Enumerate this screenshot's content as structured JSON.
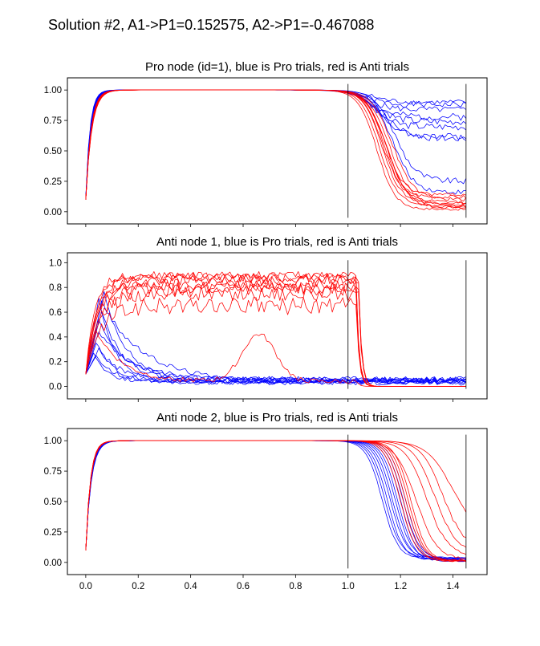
{
  "figure": {
    "suptitle": "Solution #2,  A1->P1=0.152575,  A2->P1=-0.467088"
  },
  "colors": {
    "pro": "#0000ff",
    "anti": "#ff0000",
    "marker": "#000000"
  },
  "chart_data": [
    {
      "type": "line",
      "title": "Pro node (id=1), blue is Pro trials, red is Anti trials",
      "xlabel": "",
      "ylabel": "",
      "xlim": [
        -0.07,
        1.53
      ],
      "ylim": [
        -0.1,
        1.1
      ],
      "x_ticks": [
        0.0,
        0.2,
        0.4,
        0.6,
        0.8,
        1.0,
        1.2,
        1.4
      ],
      "y_ticks": [
        0.0,
        0.25,
        0.5,
        0.75,
        1.0
      ],
      "y_tick_labels": [
        "0.00",
        "0.25",
        "0.50",
        "0.75",
        "1.00"
      ],
      "show_x_tick_labels": false,
      "vlines": [
        {
          "x": 1.0,
          "y0": -0.05,
          "y1": 1.05
        },
        {
          "x": 1.45,
          "y0": -0.05,
          "y1": 1.05
        }
      ],
      "series": [
        {
          "group": "pro",
          "kind": "sat",
          "y0": 0.1,
          "r": 55,
          "dec_t": 1.07,
          "dec_w": 0.04,
          "final": 0.88,
          "noise": 0.05,
          "seed": 1
        },
        {
          "group": "pro",
          "kind": "sat",
          "y0": 0.12,
          "r": 60,
          "dec_t": 1.09,
          "dec_w": 0.04,
          "final": 0.78,
          "noise": 0.06,
          "seed": 2
        },
        {
          "group": "pro",
          "kind": "sat",
          "y0": 0.1,
          "r": 50,
          "dec_t": 1.1,
          "dec_w": 0.04,
          "final": 0.7,
          "noise": 0.06,
          "seed": 3
        },
        {
          "group": "pro",
          "kind": "sat",
          "y0": 0.11,
          "r": 58,
          "dec_t": 1.12,
          "dec_w": 0.04,
          "final": 0.62,
          "noise": 0.05,
          "seed": 4
        },
        {
          "group": "pro",
          "kind": "sat",
          "y0": 0.1,
          "r": 52,
          "dec_t": 1.08,
          "dec_w": 0.04,
          "final": 0.84,
          "noise": 0.05,
          "seed": 5
        },
        {
          "group": "pro",
          "kind": "sat",
          "y0": 0.1,
          "r": 56,
          "dec_t": 1.11,
          "dec_w": 0.04,
          "final": 0.74,
          "noise": 0.06,
          "seed": 6
        },
        {
          "group": "pro",
          "kind": "sat",
          "y0": 0.12,
          "r": 62,
          "dec_t": 1.13,
          "dec_w": 0.05,
          "final": 0.6,
          "noise": 0.06,
          "seed": 7
        },
        {
          "group": "pro",
          "kind": "sat",
          "y0": 0.1,
          "r": 54,
          "dec_t": 1.09,
          "dec_w": 0.04,
          "final": 0.9,
          "noise": 0.04,
          "seed": 8
        },
        {
          "group": "pro",
          "kind": "sat",
          "y0": 0.11,
          "r": 57,
          "dec_t": 1.18,
          "dec_w": 0.04,
          "final": 0.25,
          "noise": 0.05,
          "seed": 9
        },
        {
          "group": "pro",
          "kind": "sat",
          "y0": 0.1,
          "r": 53,
          "dec_t": 1.17,
          "dec_w": 0.04,
          "final": 0.16,
          "noise": 0.04,
          "seed": 10
        },
        {
          "group": "anti",
          "kind": "sat",
          "y0": 0.1,
          "r": 45,
          "dec_t": 1.12,
          "dec_w": 0.035,
          "final": 0.05,
          "noise": 0.02,
          "seed": 11
        },
        {
          "group": "anti",
          "kind": "sat",
          "y0": 0.1,
          "r": 48,
          "dec_t": 1.14,
          "dec_w": 0.035,
          "final": 0.08,
          "noise": 0.03,
          "seed": 12
        },
        {
          "group": "anti",
          "kind": "sat",
          "y0": 0.1,
          "r": 50,
          "dec_t": 1.15,
          "dec_w": 0.04,
          "final": 0.03,
          "noise": 0.02,
          "seed": 13
        },
        {
          "group": "anti",
          "kind": "sat",
          "y0": 0.11,
          "r": 46,
          "dec_t": 1.13,
          "dec_w": 0.035,
          "final": 0.12,
          "noise": 0.03,
          "seed": 14
        },
        {
          "group": "anti",
          "kind": "sat",
          "y0": 0.1,
          "r": 47,
          "dec_t": 1.16,
          "dec_w": 0.04,
          "final": 0.06,
          "noise": 0.02,
          "seed": 15
        },
        {
          "group": "anti",
          "kind": "sat",
          "y0": 0.1,
          "r": 49,
          "dec_t": 1.17,
          "dec_w": 0.04,
          "final": 0.1,
          "noise": 0.03,
          "seed": 16
        },
        {
          "group": "anti",
          "kind": "sat",
          "y0": 0.1,
          "r": 44,
          "dec_t": 1.11,
          "dec_w": 0.035,
          "final": 0.02,
          "noise": 0.02,
          "seed": 17
        },
        {
          "group": "anti",
          "kind": "sat",
          "y0": 0.1,
          "r": 51,
          "dec_t": 1.14,
          "dec_w": 0.035,
          "final": 0.14,
          "noise": 0.03,
          "seed": 18
        },
        {
          "group": "anti",
          "kind": "sat",
          "y0": 0.1,
          "r": 48,
          "dec_t": 1.15,
          "dec_w": 0.04,
          "final": 0.04,
          "noise": 0.02,
          "seed": 19
        },
        {
          "group": "anti",
          "kind": "sat",
          "y0": 0.1,
          "r": 46,
          "dec_t": 1.13,
          "dec_w": 0.035,
          "final": 0.07,
          "noise": 0.02,
          "seed": 20
        }
      ]
    },
    {
      "type": "line",
      "title": "Anti node 1, blue is Pro trials, red is Anti trials",
      "xlabel": "",
      "ylabel": "",
      "xlim": [
        -0.07,
        1.53
      ],
      "ylim": [
        -0.1,
        1.08
      ],
      "x_ticks": [
        0.0,
        0.2,
        0.4,
        0.6,
        0.8,
        1.0,
        1.2,
        1.4
      ],
      "y_ticks": [
        0.0,
        0.2,
        0.4,
        0.6,
        0.8,
        1.0
      ],
      "y_tick_labels": [
        "0.0",
        "0.2",
        "0.4",
        "0.6",
        "0.8",
        "1.0"
      ],
      "show_x_tick_labels": false,
      "vlines": [
        {
          "x": 1.0,
          "y0": -0.02,
          "y1": 1.02
        },
        {
          "x": 1.45,
          "y0": -0.02,
          "y1": 1.02
        }
      ],
      "series": [
        {
          "group": "pro",
          "kind": "hump",
          "y0": 0.1,
          "peak": 0.72,
          "tp": 0.05,
          "tau": 0.06,
          "base": 0.04,
          "noise": 0.015,
          "seed": 21
        },
        {
          "group": "pro",
          "kind": "hump",
          "y0": 0.1,
          "peak": 0.62,
          "tp": 0.06,
          "tau": 0.08,
          "base": 0.05,
          "noise": 0.02,
          "seed": 22
        },
        {
          "group": "pro",
          "kind": "hump",
          "y0": 0.1,
          "peak": 0.52,
          "tp": 0.05,
          "tau": 0.1,
          "base": 0.06,
          "noise": 0.02,
          "seed": 23
        },
        {
          "group": "pro",
          "kind": "hump",
          "y0": 0.1,
          "peak": 0.75,
          "tp": 0.07,
          "tau": 0.09,
          "base": 0.03,
          "noise": 0.02,
          "seed": 24
        },
        {
          "group": "pro",
          "kind": "hump",
          "y0": 0.1,
          "peak": 0.27,
          "tp": 0.03,
          "tau": 0.05,
          "base": 0.04,
          "noise": 0.015,
          "seed": 25
        },
        {
          "group": "pro",
          "kind": "hump",
          "y0": 0.1,
          "peak": 0.25,
          "tp": 0.04,
          "tau": 0.06,
          "base": 0.05,
          "noise": 0.02,
          "seed": 26
        },
        {
          "group": "pro",
          "kind": "hump",
          "y0": 0.1,
          "peak": 0.45,
          "tp": 0.05,
          "tau": 0.12,
          "base": 0.06,
          "noise": 0.02,
          "seed": 27
        },
        {
          "group": "pro",
          "kind": "hump",
          "y0": 0.1,
          "peak": 0.68,
          "tp": 0.06,
          "tau": 0.16,
          "base": 0.04,
          "noise": 0.02,
          "seed": 28
        },
        {
          "group": "pro",
          "kind": "hump",
          "y0": 0.1,
          "peak": 0.35,
          "tp": 0.04,
          "tau": 0.07,
          "base": 0.03,
          "noise": 0.015,
          "seed": 29
        },
        {
          "group": "pro",
          "kind": "hump",
          "y0": 0.1,
          "peak": 0.3,
          "tp": 0.05,
          "tau": 0.08,
          "base": 0.05,
          "noise": 0.02,
          "seed": 30
        },
        {
          "group": "anti",
          "kind": "rise",
          "y0": 0.1,
          "level": 0.88,
          "r": 25,
          "drop_t": 1.03,
          "noise": 0.04,
          "seed": 31
        },
        {
          "group": "anti",
          "kind": "rise",
          "y0": 0.1,
          "level": 0.8,
          "r": 28,
          "drop_t": 1.03,
          "noise": 0.05,
          "seed": 32
        },
        {
          "group": "anti",
          "kind": "rise",
          "y0": 0.1,
          "level": 0.85,
          "r": 22,
          "drop_t": 1.04,
          "noise": 0.05,
          "seed": 33
        },
        {
          "group": "anti",
          "kind": "rise",
          "y0": 0.1,
          "level": 0.9,
          "r": 30,
          "drop_t": 1.03,
          "noise": 0.03,
          "seed": 34
        },
        {
          "group": "anti",
          "kind": "rise",
          "y0": 0.1,
          "level": 0.75,
          "r": 20,
          "drop_t": 1.04,
          "noise": 0.06,
          "seed": 35
        },
        {
          "group": "anti",
          "kind": "rise",
          "y0": 0.1,
          "level": 0.65,
          "r": 18,
          "drop_t": 1.03,
          "noise": 0.07,
          "seed": 36
        },
        {
          "group": "anti",
          "kind": "rise",
          "y0": 0.1,
          "level": 0.87,
          "r": 26,
          "drop_t": 1.04,
          "noise": 0.04,
          "seed": 37
        },
        {
          "group": "anti",
          "kind": "rise",
          "y0": 0.1,
          "level": 0.82,
          "r": 24,
          "drop_t": 1.03,
          "noise": 0.05,
          "seed": 38
        },
        {
          "group": "anti",
          "kind": "rise",
          "y0": 0.1,
          "level": 0.78,
          "r": 21,
          "drop_t": 1.04,
          "noise": 0.06,
          "seed": 39
        },
        {
          "group": "anti",
          "kind": "bump",
          "y0": 0.1,
          "peak": 0.45,
          "tp": 0.04,
          "tau": 0.1,
          "base": 0.04,
          "bump_at": 0.66,
          "bump_h": 0.38,
          "bump_w": 0.09,
          "drop_t": 1.03,
          "noise": 0.02,
          "seed": 40
        }
      ]
    },
    {
      "type": "line",
      "title": "Anti node 2, blue is Pro trials, red is Anti trials",
      "xlabel": "",
      "ylabel": "",
      "xlim": [
        -0.07,
        1.53
      ],
      "ylim": [
        -0.1,
        1.1
      ],
      "x_ticks": [
        0.0,
        0.2,
        0.4,
        0.6,
        0.8,
        1.0,
        1.2,
        1.4
      ],
      "x_tick_labels": [
        "0.0",
        "0.2",
        "0.4",
        "0.6",
        "0.8",
        "1.0",
        "1.2",
        "1.4"
      ],
      "y_ticks": [
        0.0,
        0.25,
        0.5,
        0.75,
        1.0
      ],
      "y_tick_labels": [
        "0.00",
        "0.25",
        "0.50",
        "0.75",
        "1.00"
      ],
      "show_x_tick_labels": true,
      "vlines": [
        {
          "x": 1.0,
          "y0": -0.05,
          "y1": 1.05
        },
        {
          "x": 1.45,
          "y0": -0.05,
          "y1": 1.05
        }
      ],
      "series": [
        {
          "group": "pro",
          "kind": "sat",
          "y0": 0.1,
          "r": 50,
          "dec_t": 1.13,
          "dec_w": 0.03,
          "final": 0.03,
          "noise": 0.01,
          "seed": 41
        },
        {
          "group": "pro",
          "kind": "sat",
          "y0": 0.1,
          "r": 52,
          "dec_t": 1.15,
          "dec_w": 0.03,
          "final": 0.02,
          "noise": 0.01,
          "seed": 42
        },
        {
          "group": "pro",
          "kind": "sat",
          "y0": 0.1,
          "r": 48,
          "dec_t": 1.16,
          "dec_w": 0.03,
          "final": 0.04,
          "noise": 0.01,
          "seed": 43
        },
        {
          "group": "pro",
          "kind": "sat",
          "y0": 0.1,
          "r": 51,
          "dec_t": 1.17,
          "dec_w": 0.03,
          "final": 0.02,
          "noise": 0.01,
          "seed": 44
        },
        {
          "group": "pro",
          "kind": "sat",
          "y0": 0.1,
          "r": 49,
          "dec_t": 1.18,
          "dec_w": 0.03,
          "final": 0.03,
          "noise": 0.01,
          "seed": 45
        },
        {
          "group": "pro",
          "kind": "sat",
          "y0": 0.1,
          "r": 50,
          "dec_t": 1.19,
          "dec_w": 0.03,
          "final": 0.01,
          "noise": 0.01,
          "seed": 46
        },
        {
          "group": "pro",
          "kind": "sat",
          "y0": 0.1,
          "r": 47,
          "dec_t": 1.2,
          "dec_w": 0.03,
          "final": 0.02,
          "noise": 0.01,
          "seed": 47
        },
        {
          "group": "pro",
          "kind": "sat",
          "y0": 0.1,
          "r": 53,
          "dec_t": 1.21,
          "dec_w": 0.03,
          "final": 0.03,
          "noise": 0.01,
          "seed": 48
        },
        {
          "group": "pro",
          "kind": "sat",
          "y0": 0.1,
          "r": 50,
          "dec_t": 1.14,
          "dec_w": 0.03,
          "final": 0.04,
          "noise": 0.01,
          "seed": 49
        },
        {
          "group": "pro",
          "kind": "sat",
          "y0": 0.1,
          "r": 52,
          "dec_t": 1.22,
          "dec_w": 0.03,
          "final": 0.02,
          "noise": 0.01,
          "seed": 50
        },
        {
          "group": "anti",
          "kind": "sat",
          "y0": 0.1,
          "r": 55,
          "dec_t": 1.2,
          "dec_w": 0.03,
          "final": 0.01,
          "noise": 0.01,
          "seed": 51
        },
        {
          "group": "anti",
          "kind": "sat",
          "y0": 0.1,
          "r": 56,
          "dec_t": 1.21,
          "dec_w": 0.03,
          "final": 0.01,
          "noise": 0.01,
          "seed": 52
        },
        {
          "group": "anti",
          "kind": "sat",
          "y0": 0.1,
          "r": 54,
          "dec_t": 1.22,
          "dec_w": 0.03,
          "final": 0.02,
          "noise": 0.01,
          "seed": 53
        },
        {
          "group": "anti",
          "kind": "sat",
          "y0": 0.1,
          "r": 57,
          "dec_t": 1.23,
          "dec_w": 0.03,
          "final": 0.01,
          "noise": 0.01,
          "seed": 54
        },
        {
          "group": "anti",
          "kind": "sat",
          "y0": 0.1,
          "r": 55,
          "dec_t": 1.26,
          "dec_w": 0.04,
          "final": 0.02,
          "noise": 0.02,
          "seed": 55
        },
        {
          "group": "anti",
          "kind": "sat",
          "y0": 0.1,
          "r": 53,
          "dec_t": 1.3,
          "dec_w": 0.04,
          "final": 0.05,
          "noise": 0.02,
          "seed": 56
        },
        {
          "group": "anti",
          "kind": "sat",
          "y0": 0.1,
          "r": 56,
          "dec_t": 1.33,
          "dec_w": 0.04,
          "final": 0.08,
          "noise": 0.03,
          "seed": 57
        },
        {
          "group": "anti",
          "kind": "sat",
          "y0": 0.1,
          "r": 55,
          "dec_t": 1.36,
          "dec_w": 0.04,
          "final": 0.12,
          "noise": 0.03,
          "seed": 58
        },
        {
          "group": "anti",
          "kind": "sat",
          "y0": 0.1,
          "r": 54,
          "dec_t": 1.4,
          "dec_w": 0.05,
          "final": 0.2,
          "noise": 0.02,
          "seed": 59
        },
        {
          "group": "anti",
          "kind": "sat",
          "y0": 0.1,
          "r": 55,
          "dec_t": 1.24,
          "dec_w": 0.03,
          "final": 0.01,
          "noise": 0.01,
          "seed": 60
        }
      ]
    }
  ]
}
